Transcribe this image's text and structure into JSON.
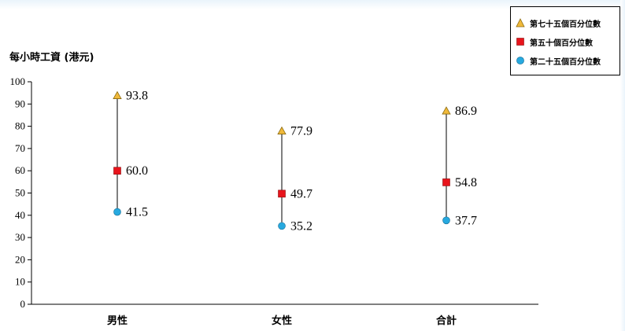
{
  "chart_data": {
    "type": "scatter",
    "ylabel": "每小時工資 (港元)",
    "categories": [
      "男性",
      "女性",
      "合計"
    ],
    "ylim": [
      0,
      100
    ],
    "yticks": [
      0,
      10,
      20,
      30,
      40,
      50,
      60,
      70,
      80,
      90,
      100
    ],
    "series": [
      {
        "name": "第七十五個百分位數",
        "marker": "triangle",
        "color": "#f0b93a",
        "values": [
          93.8,
          77.9,
          86.9
        ]
      },
      {
        "name": "第五十個百分位數",
        "marker": "square",
        "color": "#e8141c",
        "values": [
          60.0,
          49.7,
          54.8
        ]
      },
      {
        "name": "第二十五個百分位數",
        "marker": "circle",
        "color": "#27a9df",
        "values": [
          41.5,
          35.2,
          37.7
        ]
      }
    ],
    "value_labels": [
      [
        "93.8",
        "77.9",
        "86.9"
      ],
      [
        "60.0",
        "49.7",
        "54.8"
      ],
      [
        "41.5",
        "35.2",
        "37.7"
      ]
    ],
    "legend_position": "top-right",
    "grid": false
  }
}
